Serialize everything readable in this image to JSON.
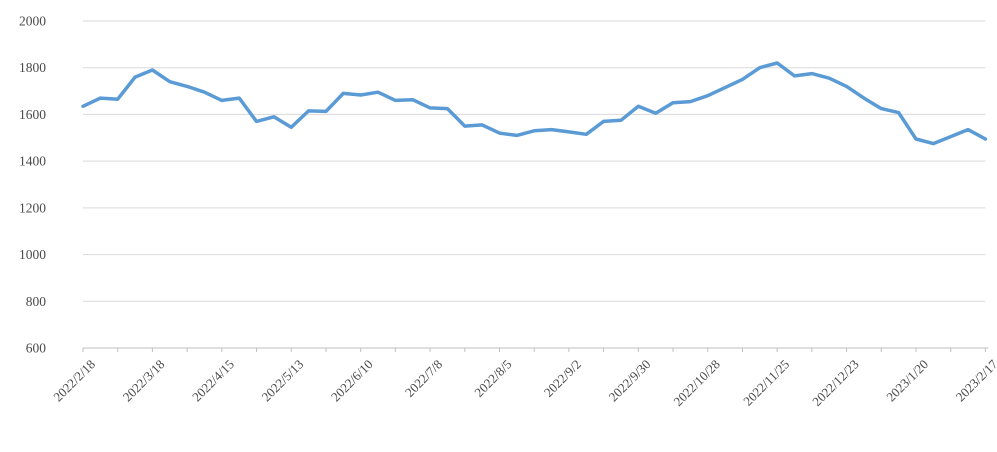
{
  "chart_data": {
    "type": "line",
    "title": "",
    "legend": "none",
    "grid": "horizontal",
    "background_color": "#ffffff",
    "line_color": "#5B9BD5",
    "gridline_color": "#D9D9D9",
    "axis_line_color": "#BFBFBF",
    "label_color": "#4a4a4a",
    "ylim": [
      600,
      2000
    ],
    "y_ticks": [
      600,
      800,
      1000,
      1200,
      1400,
      1600,
      1800,
      2000
    ],
    "x_tick_labels": [
      "2022/2/18",
      "2022/3/18",
      "2022/4/15",
      "2022/5/13",
      "2022/6/10",
      "2022/7/8",
      "2022/8/5",
      "2022/9/2",
      "2022/9/30",
      "2022/10/28",
      "2022/11/25",
      "2022/12/23",
      "2023/1/20",
      "2023/2/17"
    ],
    "point_interval": "weekly",
    "n_points": 53,
    "label_every_n_points": 4,
    "tick_every_n_points": 2,
    "values": [
      1635,
      1670,
      1665,
      1760,
      1790,
      1740,
      1720,
      1695,
      1660,
      1670,
      1570,
      1590,
      1545,
      1615,
      1613,
      1690,
      1683,
      1695,
      1660,
      1663,
      1628,
      1625,
      1550,
      1555,
      1520,
      1510,
      1530,
      1535,
      1525,
      1515,
      1570,
      1575,
      1635,
      1605,
      1650,
      1655,
      1680,
      1715,
      1750,
      1800,
      1820,
      1765,
      1775,
      1755,
      1720,
      1670,
      1625,
      1608,
      1495,
      1475,
      1505,
      1535,
      1495
    ]
  }
}
